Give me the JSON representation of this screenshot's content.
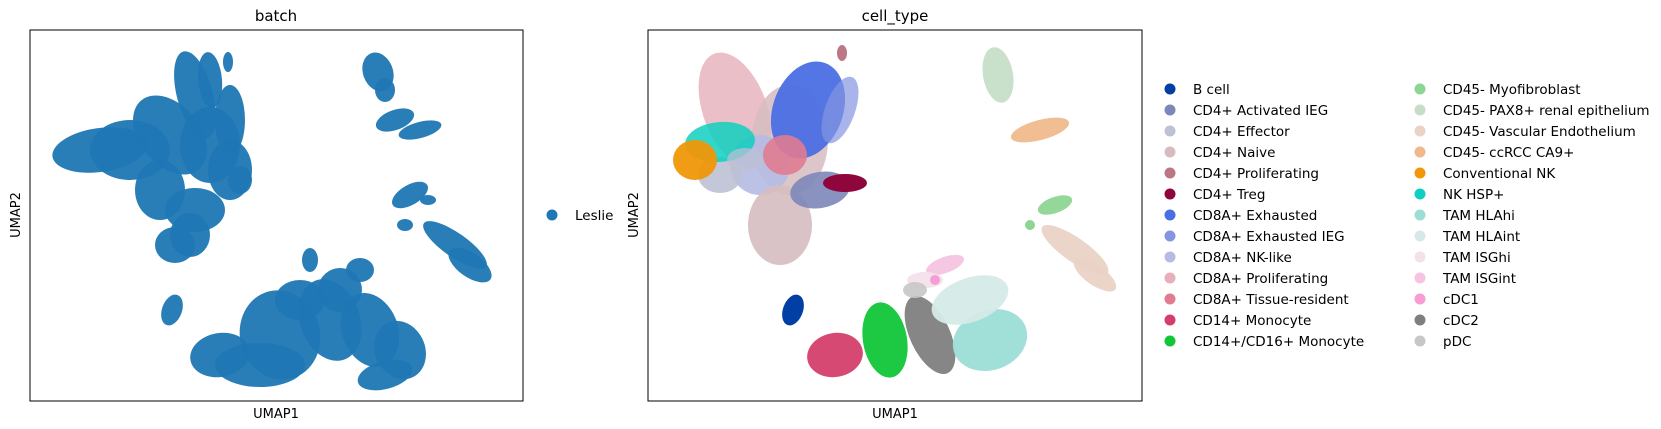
{
  "chart_data": [
    {
      "type": "scatter",
      "title": "batch",
      "xlabel": "UMAP1",
      "ylabel": "UMAP2",
      "grid": false,
      "ticks": false,
      "legend_position": "right",
      "legend": [
        {
          "label": "Leslie",
          "color": "#1f77b4"
        }
      ],
      "point_color": "#1f77b4"
    },
    {
      "type": "scatter",
      "title": "cell_type",
      "xlabel": "UMAP1",
      "ylabel": "UMAP2",
      "grid": false,
      "ticks": false,
      "legend_position": "right",
      "legend": [
        {
          "label": "B cell",
          "color": "#023fa5"
        },
        {
          "label": "CD4+ Activated IEG",
          "color": "#7d87b9"
        },
        {
          "label": "CD4+ Effector",
          "color": "#bec1d4"
        },
        {
          "label": "CD4+ Naive",
          "color": "#d6bcc0"
        },
        {
          "label": "CD4+ Proliferating",
          "color": "#bb7784"
        },
        {
          "label": "CD4+ Treg",
          "color": "#8e063b"
        },
        {
          "label": "CD8A+ Exhausted",
          "color": "#4a6fe3"
        },
        {
          "label": "CD8A+ Exhausted IEG",
          "color": "#8595e1"
        },
        {
          "label": "CD8A+ NK-like",
          "color": "#b5bbe3"
        },
        {
          "label": "CD8A+ Proliferating",
          "color": "#e6afb9"
        },
        {
          "label": "CD8A+ Tissue-resident",
          "color": "#e07b91"
        },
        {
          "label": "CD14+ Monocyte",
          "color": "#d33f6a"
        },
        {
          "label": "CD14+/CD16+ Monocyte",
          "color": "#11c638"
        },
        {
          "label": "CD45- Myofibroblast",
          "color": "#8dd593"
        },
        {
          "label": "CD45- PAX8+ renal epithelium",
          "color": "#c6dec7"
        },
        {
          "label": "CD45- Vascular Endothelium",
          "color": "#ead3c6"
        },
        {
          "label": "CD45- ccRCC CA9+",
          "color": "#f0b98d"
        },
        {
          "label": "Conventional NK",
          "color": "#ef9708"
        },
        {
          "label": "NK HSP+",
          "color": "#0fcfc0"
        },
        {
          "label": "TAM HLAhi",
          "color": "#9cded6"
        },
        {
          "label": "TAM HLAint",
          "color": "#d5eae7"
        },
        {
          "label": "TAM ISGhi",
          "color": "#f3e1eb"
        },
        {
          "label": "TAM ISGint",
          "color": "#f6c4e1"
        },
        {
          "label": "cDC1",
          "color": "#f79cd4"
        },
        {
          "label": "cDC2",
          "color": "#7f7f7f"
        },
        {
          "label": "pDC",
          "color": "#c7c7c7"
        }
      ]
    }
  ]
}
